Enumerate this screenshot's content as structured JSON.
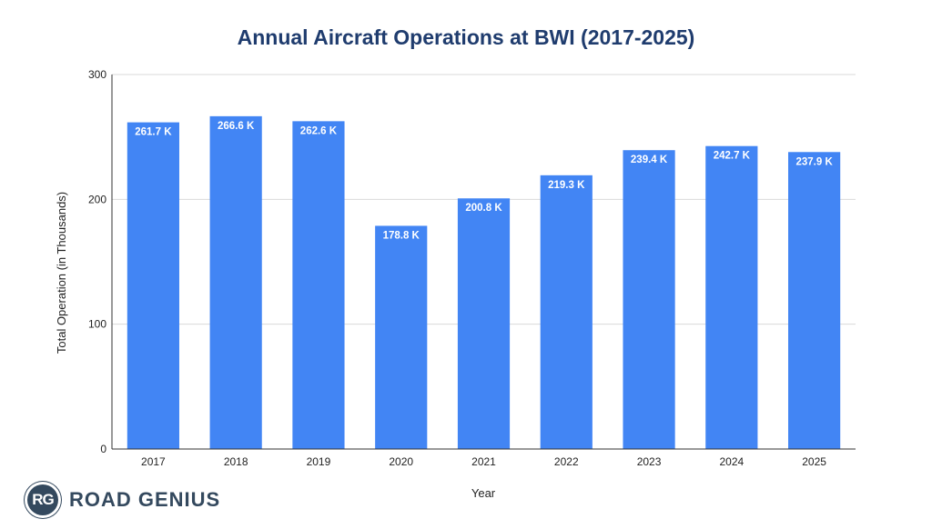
{
  "chart_data": {
    "type": "bar",
    "title": "Annual Aircraft Operations at BWI (2017-2025)",
    "xlabel": "Year",
    "ylabel": "Total Operation (in Thousands)",
    "categories": [
      "2017",
      "2018",
      "2019",
      "2020",
      "2021",
      "2022",
      "2023",
      "2024",
      "2025"
    ],
    "values": [
      261.7,
      266.6,
      262.6,
      178.8,
      200.8,
      219.3,
      239.4,
      242.7,
      237.9
    ],
    "data_labels": [
      "261.7 K",
      "266.6 K",
      "262.6 K",
      "178.8 K",
      "200.8 K",
      "219.3 K",
      "239.4 K",
      "242.7 K",
      "237.9 K"
    ],
    "ylim": [
      0,
      300
    ],
    "yticks": [
      "0",
      "100",
      "200",
      "300"
    ],
    "grid": true,
    "bar_color": "#4285f4"
  },
  "branding": {
    "badge": "RG",
    "name": "ROAD GENIUS"
  }
}
